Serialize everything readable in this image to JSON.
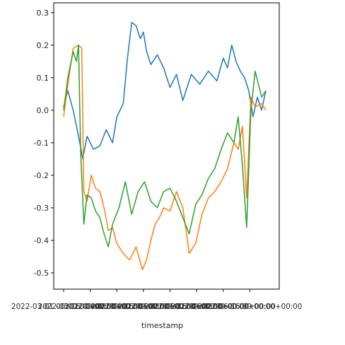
{
  "chart_data": {
    "type": "line",
    "title": "",
    "xlabel": "timestamp",
    "ylabel": "",
    "ylim": [
      -0.55,
      0.33
    ],
    "grid": false,
    "legend": "none",
    "y_ticks": [
      {
        "value": 0.3,
        "label": "0.3"
      },
      {
        "value": 0.2,
        "label": "0.2"
      },
      {
        "value": 0.1,
        "label": "0.1"
      },
      {
        "value": 0.0,
        "label": "0.0"
      },
      {
        "value": -0.1,
        "label": "-0.1"
      },
      {
        "value": -0.2,
        "label": "-0.2"
      },
      {
        "value": -0.3,
        "label": "-0.3"
      },
      {
        "value": -0.4,
        "label": "-0.4"
      },
      {
        "value": -0.5,
        "label": "-0.5"
      }
    ],
    "x_ticks": [
      {
        "value": 0.0,
        "label": "2022-03-01 00:00:00+00:00"
      },
      {
        "value": 0.125,
        "label": "2022-03-16 00:00:00+00:00"
      },
      {
        "value": 0.25,
        "label": "2022-04-01 00:00:00+00:00"
      },
      {
        "value": 0.375,
        "label": "2022-04-16 00:00:00+00:00"
      },
      {
        "value": 0.5,
        "label": "2022-05-01 00:00:00+00:00"
      },
      {
        "value": 0.625,
        "label": "2022-05-16 00:00:00+00:00"
      },
      {
        "value": 0.75,
        "label": "2022-06-01 00:00:00+00:00"
      },
      {
        "value": 0.875,
        "label": "2022-06-16 00:00:00+00:00"
      }
    ],
    "x_range": [
      -0.05,
      1.0
    ],
    "series": [
      {
        "color": "#1f77b4",
        "x": [
          0.0,
          0.02,
          0.045,
          0.07,
          0.09,
          0.11,
          0.14,
          0.17,
          0.2,
          0.23,
          0.25,
          0.28,
          0.3,
          0.32,
          0.34,
          0.36,
          0.375,
          0.39,
          0.41,
          0.44,
          0.47,
          0.5,
          0.53,
          0.56,
          0.6,
          0.64,
          0.68,
          0.72,
          0.75,
          0.77,
          0.79,
          0.81,
          0.83,
          0.85,
          0.87,
          0.89,
          0.91,
          0.93,
          0.95
        ],
        "values": [
          0.01,
          0.06,
          0.0,
          -0.08,
          -0.15,
          -0.08,
          -0.12,
          -0.11,
          -0.06,
          -0.1,
          -0.02,
          0.02,
          0.16,
          0.27,
          0.26,
          0.22,
          0.24,
          0.18,
          0.14,
          0.17,
          0.13,
          0.07,
          0.11,
          0.03,
          0.11,
          0.08,
          0.12,
          0.09,
          0.16,
          0.13,
          0.2,
          0.15,
          0.12,
          0.1,
          0.06,
          -0.02,
          0.04,
          0.0,
          0.06
        ]
      },
      {
        "color": "#ff7f0e",
        "x": [
          0.0,
          0.02,
          0.045,
          0.07,
          0.085,
          0.095,
          0.11,
          0.13,
          0.15,
          0.17,
          0.19,
          0.21,
          0.23,
          0.25,
          0.28,
          0.31,
          0.34,
          0.37,
          0.39,
          0.41,
          0.43,
          0.45,
          0.47,
          0.5,
          0.53,
          0.56,
          0.59,
          0.62,
          0.65,
          0.68,
          0.71,
          0.74,
          0.77,
          0.8,
          0.82,
          0.84,
          0.86,
          0.88,
          0.9,
          0.93,
          0.95
        ],
        "values": [
          -0.02,
          0.08,
          0.19,
          0.2,
          0.19,
          -0.25,
          -0.28,
          -0.2,
          -0.24,
          -0.25,
          -0.3,
          -0.37,
          -0.36,
          -0.41,
          -0.44,
          -0.46,
          -0.42,
          -0.49,
          -0.46,
          -0.4,
          -0.35,
          -0.33,
          -0.3,
          -0.31,
          -0.25,
          -0.3,
          -0.44,
          -0.41,
          -0.32,
          -0.27,
          -0.25,
          -0.22,
          -0.18,
          -0.1,
          -0.12,
          -0.05,
          -0.27,
          0.04,
          0.01,
          0.02,
          0.0
        ]
      },
      {
        "color": "#2ca02c",
        "x": [
          0.0,
          0.02,
          0.045,
          0.06,
          0.07,
          0.08,
          0.095,
          0.11,
          0.13,
          0.15,
          0.17,
          0.19,
          0.21,
          0.23,
          0.26,
          0.29,
          0.32,
          0.35,
          0.38,
          0.41,
          0.44,
          0.47,
          0.5,
          0.53,
          0.56,
          0.59,
          0.62,
          0.65,
          0.68,
          0.71,
          0.74,
          0.77,
          0.8,
          0.82,
          0.84,
          0.86,
          0.88,
          0.9,
          0.93,
          0.95
        ],
        "values": [
          0.0,
          0.1,
          0.18,
          0.15,
          0.2,
          -0.13,
          -0.35,
          -0.26,
          -0.27,
          -0.31,
          -0.33,
          -0.38,
          -0.42,
          -0.35,
          -0.3,
          -0.22,
          -0.32,
          -0.25,
          -0.22,
          -0.28,
          -0.3,
          -0.25,
          -0.24,
          -0.28,
          -0.33,
          -0.38,
          -0.29,
          -0.26,
          -0.21,
          -0.18,
          -0.12,
          -0.07,
          -0.1,
          -0.02,
          -0.17,
          -0.36,
          0.0,
          0.12,
          0.04,
          0.06
        ]
      }
    ]
  }
}
